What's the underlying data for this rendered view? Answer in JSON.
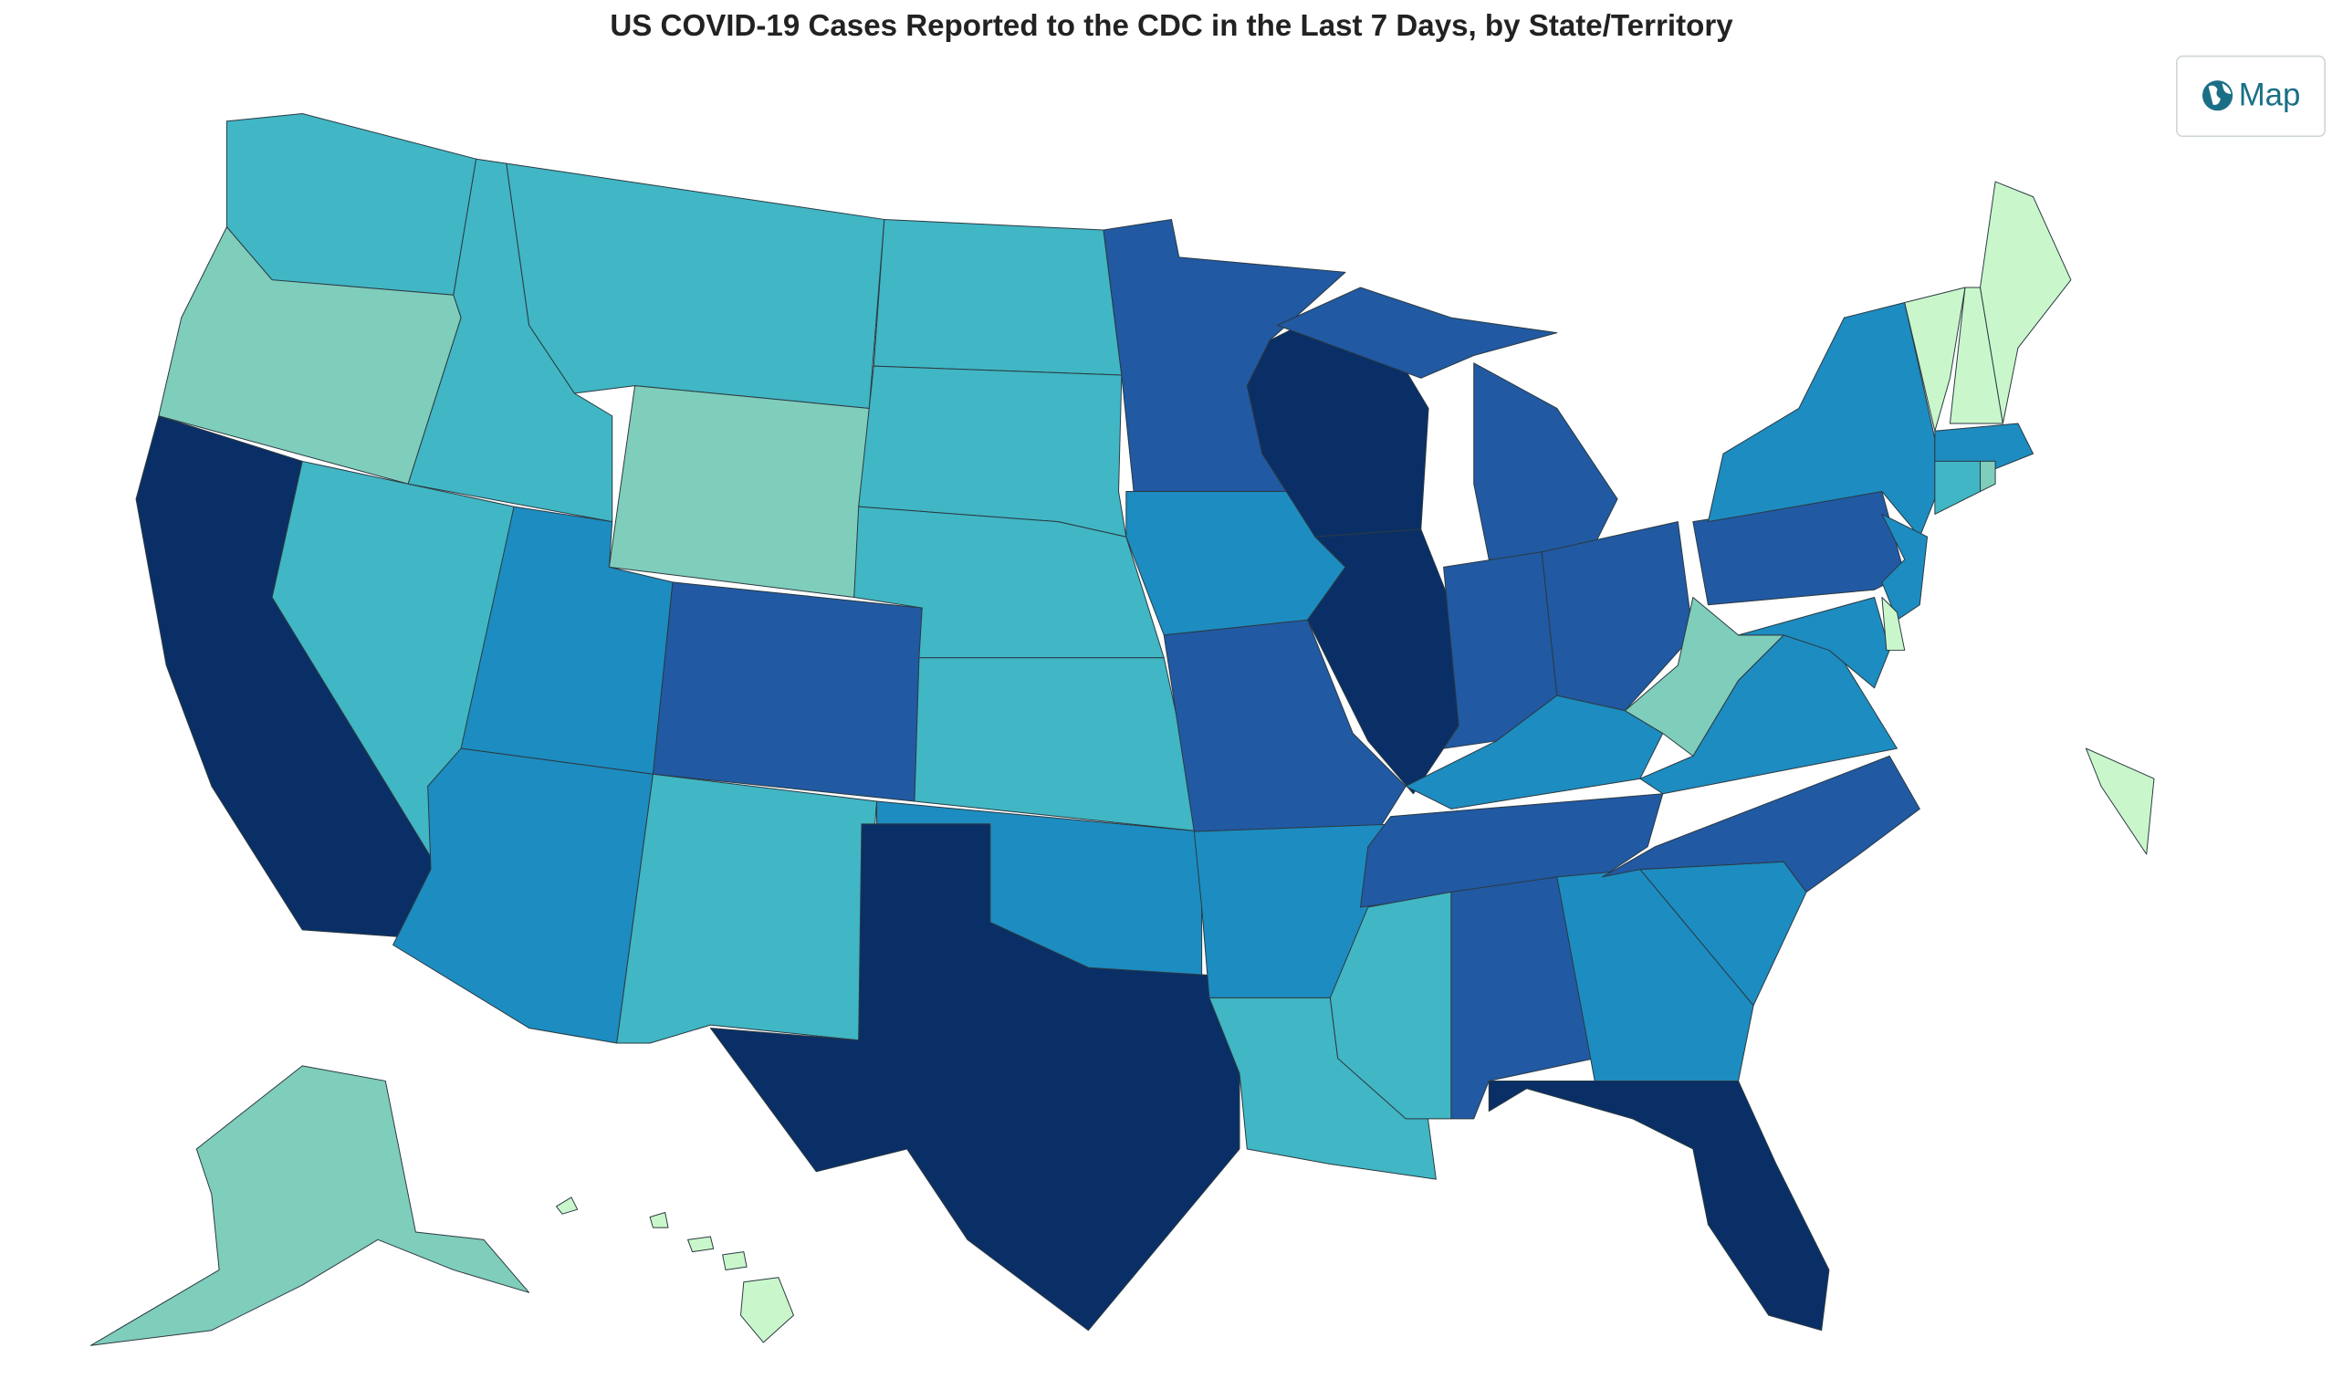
{
  "header": {
    "title": "US COVID-19 Cases Reported to the CDC in the Last 7 Days, by State/Territory"
  },
  "toolbar": {
    "button_label": "Map"
  }
}
